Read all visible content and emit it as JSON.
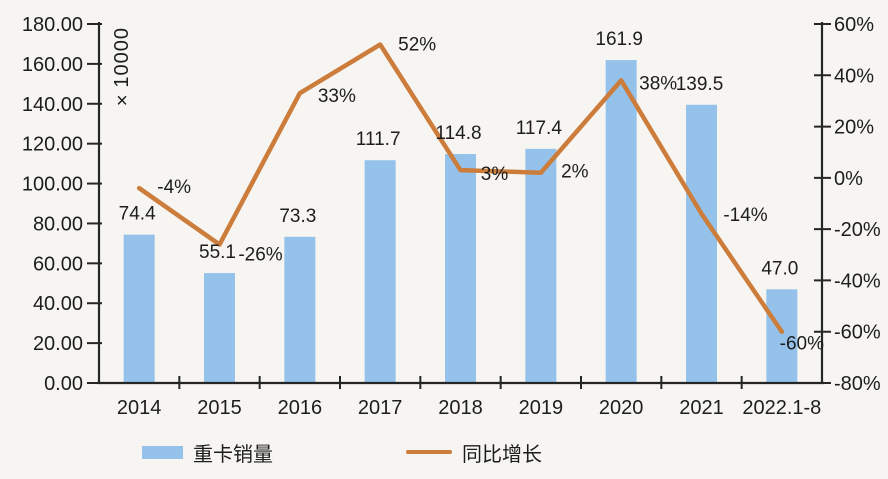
{
  "chart_data": {
    "type": "bar",
    "subtype": "combo-bar-line",
    "categories": [
      "2014",
      "2015",
      "2016",
      "2017",
      "2018",
      "2019",
      "2020",
      "2021",
      "2022.1-8"
    ],
    "series": [
      {
        "name": "重卡销量",
        "type": "bar",
        "axis": "left",
        "values": [
          74.4,
          55.1,
          73.3,
          111.7,
          114.8,
          117.4,
          161.9,
          139.5,
          47.0
        ],
        "labels": [
          "74.4",
          "55.1",
          "73.3",
          "111.7",
          "114.8",
          "117.4",
          "161.9",
          "139.5",
          "47.0"
        ]
      },
      {
        "name": "同比增长",
        "type": "line",
        "axis": "right",
        "values": [
          -4,
          -26,
          33,
          52,
          3,
          2,
          38,
          -14,
          -60
        ],
        "labels": [
          "-4%",
          "-26%",
          "33%",
          "52%",
          "3%",
          "2%",
          "38%",
          "-14%",
          "-60%"
        ],
        "label_dx": [
          35,
          41,
          37,
          37,
          34,
          34,
          37,
          44,
          20
        ],
        "label_dy": [
          -2,
          9,
          2,
          -1,
          3,
          -2,
          2,
          0,
          11
        ]
      }
    ],
    "left_axis": {
      "unit_label": "×10000",
      "min": 0,
      "max": 180,
      "step": 20,
      "ticks": [
        "180.00",
        "160.00",
        "140.00",
        "120.00",
        "100.00",
        "80.00",
        "60.00",
        "40.00",
        "20.00",
        "0.00"
      ]
    },
    "right_axis": {
      "min": -80,
      "max": 60,
      "step": 20,
      "ticks": [
        "60%",
        "40%",
        "20%",
        "0%",
        "-20%",
        "-40%",
        "-60%",
        "-80%"
      ]
    },
    "legend": {
      "position": "bottom",
      "entries": [
        "重卡销量",
        "同比增长"
      ]
    },
    "grid": false,
    "colors": {
      "bar": "#94C2EB",
      "line": "#CC7C3B",
      "axis": "#262626",
      "text": "#1d1d1d",
      "background": "#f6f5f2"
    }
  }
}
